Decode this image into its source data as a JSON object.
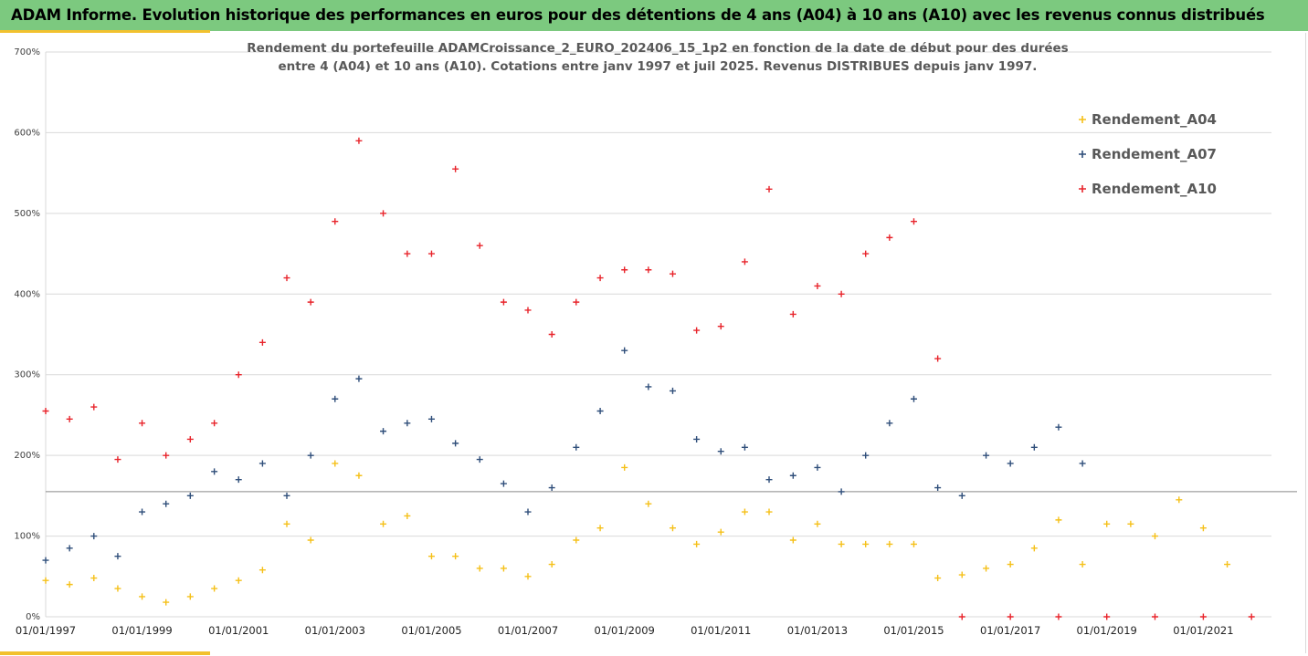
{
  "header": {
    "title": "ADAM Informe. Evolution historique des performances en euros pour des détentions de 4 ans (A04) à 10 ans (A10) avec les revenus connus distribués"
  },
  "chart_data": {
    "type": "scatter",
    "title": "",
    "subtitle_lines": [
      "Rendement du portefeuille ADAMCroissance_2_EURO_202406_15_1p2  en fonction de la date de début pour des durées",
      "entre 4 (A04) et 10 ans (A10). Cotations entre janv 1997 et juil 2025. Revenus DISTRIBUES depuis janv 1997."
    ],
    "xlabel": "",
    "ylabel": "",
    "x_range": [
      "1997-01-01",
      "2022-06-01"
    ],
    "ylim": [
      0,
      700
    ],
    "y_ticks": [
      "0%",
      "100%",
      "200%",
      "300%",
      "400%",
      "500%",
      "600%",
      "700%"
    ],
    "y_tick_values": [
      0,
      100,
      200,
      300,
      400,
      500,
      600,
      700
    ],
    "x_ticks": [
      "01/01/1997",
      "01/01/1999",
      "01/01/2001",
      "01/01/2003",
      "01/01/2005",
      "01/01/2007",
      "01/01/2009",
      "01/01/2011",
      "01/01/2013",
      "01/01/2015",
      "01/01/2017",
      "01/01/2019",
      "01/01/2021"
    ],
    "x_tick_dates": [
      "1997-01-01",
      "1999-01-01",
      "2001-01-01",
      "2003-01-01",
      "2005-01-01",
      "2007-01-01",
      "2009-01-01",
      "2011-01-01",
      "2013-01-01",
      "2015-01-01",
      "2017-01-01",
      "2019-01-01",
      "2021-01-01"
    ],
    "grid": "horizontal",
    "reference_line": 155,
    "legend_position": "top-right",
    "series": [
      {
        "name": "Rendement_A04",
        "color": "#f5c018",
        "points": [
          [
            "1997-01-01",
            45
          ],
          [
            "1997-07-01",
            40
          ],
          [
            "1998-01-01",
            48
          ],
          [
            "1998-07-01",
            35
          ],
          [
            "1999-01-01",
            25
          ],
          [
            "1999-07-01",
            18
          ],
          [
            "2000-01-01",
            25
          ],
          [
            "2000-07-01",
            35
          ],
          [
            "2001-01-01",
            45
          ],
          [
            "2001-07-01",
            58
          ],
          [
            "2002-01-01",
            115
          ],
          [
            "2002-07-01",
            95
          ],
          [
            "2003-01-01",
            190
          ],
          [
            "2003-07-01",
            175
          ],
          [
            "2004-01-01",
            115
          ],
          [
            "2004-07-01",
            125
          ],
          [
            "2005-01-01",
            75
          ],
          [
            "2005-07-01",
            75
          ],
          [
            "2006-01-01",
            60
          ],
          [
            "2006-07-01",
            60
          ],
          [
            "2007-01-01",
            50
          ],
          [
            "2007-07-01",
            65
          ],
          [
            "2008-01-01",
            95
          ],
          [
            "2008-07-01",
            110
          ],
          [
            "2009-01-01",
            185
          ],
          [
            "2009-07-01",
            140
          ],
          [
            "2010-01-01",
            110
          ],
          [
            "2010-07-01",
            90
          ],
          [
            "2011-01-01",
            105
          ],
          [
            "2011-07-01",
            130
          ],
          [
            "2012-01-01",
            130
          ],
          [
            "2012-07-01",
            95
          ],
          [
            "2013-01-01",
            115
          ],
          [
            "2013-07-01",
            90
          ],
          [
            "2014-01-01",
            90
          ],
          [
            "2014-07-01",
            90
          ],
          [
            "2015-01-01",
            90
          ],
          [
            "2015-07-01",
            48
          ],
          [
            "2016-01-01",
            52
          ],
          [
            "2016-07-01",
            60
          ],
          [
            "2017-01-01",
            65
          ],
          [
            "2017-07-01",
            85
          ],
          [
            "2018-01-01",
            120
          ],
          [
            "2018-07-01",
            65
          ],
          [
            "2019-01-01",
            115
          ],
          [
            "2019-07-01",
            115
          ],
          [
            "2020-01-01",
            100
          ],
          [
            "2020-07-01",
            145
          ],
          [
            "2021-01-01",
            110
          ],
          [
            "2021-07-01",
            65
          ]
        ]
      },
      {
        "name": "Rendement_A07",
        "color": "#2f4e7a",
        "points": [
          [
            "1997-01-01",
            70
          ],
          [
            "1997-07-01",
            85
          ],
          [
            "1998-01-01",
            100
          ],
          [
            "1998-07-01",
            75
          ],
          [
            "1999-01-01",
            130
          ],
          [
            "1999-07-01",
            140
          ],
          [
            "2000-01-01",
            150
          ],
          [
            "2000-07-01",
            180
          ],
          [
            "2001-01-01",
            170
          ],
          [
            "2001-07-01",
            190
          ],
          [
            "2002-01-01",
            150
          ],
          [
            "2002-07-01",
            200
          ],
          [
            "2003-01-01",
            270
          ],
          [
            "2003-07-01",
            295
          ],
          [
            "2004-01-01",
            230
          ],
          [
            "2004-07-01",
            240
          ],
          [
            "2005-01-01",
            245
          ],
          [
            "2005-07-01",
            215
          ],
          [
            "2006-01-01",
            195
          ],
          [
            "2006-07-01",
            165
          ],
          [
            "2007-01-01",
            130
          ],
          [
            "2007-07-01",
            160
          ],
          [
            "2008-01-01",
            210
          ],
          [
            "2008-07-01",
            255
          ],
          [
            "2009-01-01",
            330
          ],
          [
            "2009-07-01",
            285
          ],
          [
            "2010-01-01",
            280
          ],
          [
            "2010-07-01",
            220
          ],
          [
            "2011-01-01",
            205
          ],
          [
            "2011-07-01",
            210
          ],
          [
            "2012-01-01",
            170
          ],
          [
            "2012-07-01",
            175
          ],
          [
            "2013-01-01",
            185
          ],
          [
            "2013-07-01",
            155
          ],
          [
            "2014-01-01",
            200
          ],
          [
            "2014-07-01",
            240
          ],
          [
            "2015-01-01",
            270
          ],
          [
            "2015-07-01",
            160
          ],
          [
            "2016-01-01",
            150
          ],
          [
            "2016-07-01",
            200
          ],
          [
            "2017-01-01",
            190
          ],
          [
            "2017-07-01",
            210
          ],
          [
            "2018-01-01",
            235
          ],
          [
            "2018-07-01",
            190
          ]
        ]
      },
      {
        "name": "Rendement_A10",
        "color": "#e8242b",
        "points": [
          [
            "1997-01-01",
            255
          ],
          [
            "1997-07-01",
            245
          ],
          [
            "1998-01-01",
            260
          ],
          [
            "1998-07-01",
            195
          ],
          [
            "1999-01-01",
            240
          ],
          [
            "1999-07-01",
            200
          ],
          [
            "2000-01-01",
            220
          ],
          [
            "2000-07-01",
            240
          ],
          [
            "2001-01-01",
            300
          ],
          [
            "2001-07-01",
            340
          ],
          [
            "2002-01-01",
            420
          ],
          [
            "2002-07-01",
            390
          ],
          [
            "2003-01-01",
            490
          ],
          [
            "2003-07-01",
            590
          ],
          [
            "2004-01-01",
            500
          ],
          [
            "2004-07-01",
            450
          ],
          [
            "2005-01-01",
            450
          ],
          [
            "2005-07-01",
            555
          ],
          [
            "2006-01-01",
            460
          ],
          [
            "2006-07-01",
            390
          ],
          [
            "2007-01-01",
            380
          ],
          [
            "2007-07-01",
            350
          ],
          [
            "2008-01-01",
            390
          ],
          [
            "2008-07-01",
            420
          ],
          [
            "2009-01-01",
            430
          ],
          [
            "2009-07-01",
            430
          ],
          [
            "2010-01-01",
            425
          ],
          [
            "2010-07-01",
            355
          ],
          [
            "2011-01-01",
            360
          ],
          [
            "2011-07-01",
            440
          ],
          [
            "2012-01-01",
            530
          ],
          [
            "2012-07-01",
            375
          ],
          [
            "2013-01-01",
            410
          ],
          [
            "2013-07-01",
            400
          ],
          [
            "2014-01-01",
            450
          ],
          [
            "2014-07-01",
            470
          ],
          [
            "2015-01-01",
            490
          ],
          [
            "2015-07-01",
            320
          ],
          [
            "2016-01-01",
            0
          ],
          [
            "2017-01-01",
            0
          ],
          [
            "2018-01-01",
            0
          ],
          [
            "2019-01-01",
            0
          ],
          [
            "2020-01-01",
            0
          ],
          [
            "2021-01-01",
            0
          ],
          [
            "2022-01-01",
            0
          ]
        ]
      }
    ]
  }
}
